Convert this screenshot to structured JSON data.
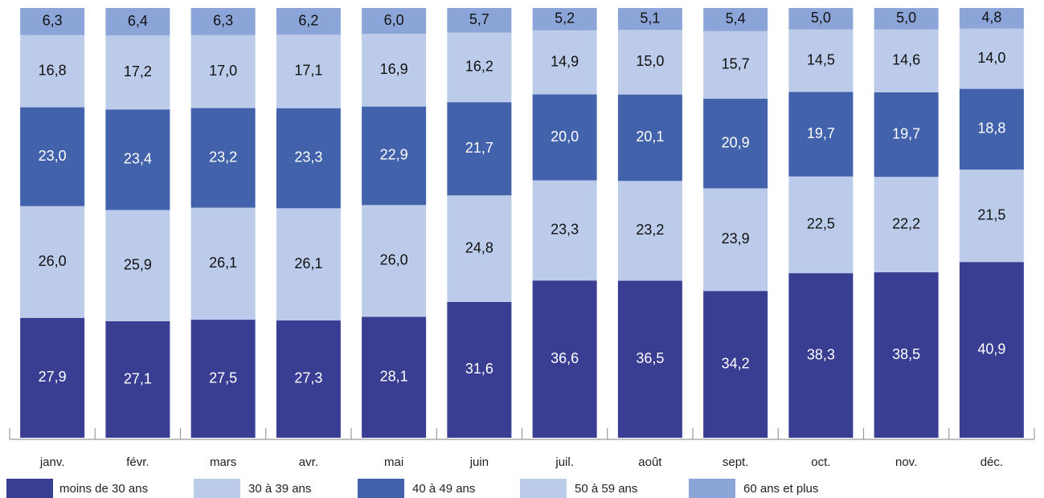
{
  "chart_data": {
    "type": "bar",
    "stacked": true,
    "percent": true,
    "categories": [
      "janv.",
      "févr.",
      "mars",
      "avr.",
      "mai",
      "juin",
      "juil.",
      "août",
      "sept.",
      "oct.",
      "nov.",
      "déc."
    ],
    "series": [
      {
        "name": "moins de 30 ans",
        "color": "#3a3e93",
        "label_color": "#ffffff",
        "values": [
          27.9,
          27.1,
          27.5,
          27.3,
          28.1,
          31.6,
          36.6,
          36.5,
          34.2,
          38.3,
          38.5,
          40.9
        ],
        "labels": [
          "27,9",
          "27,1",
          "27,5",
          "27,3",
          "28,1",
          "31,6",
          "36,6",
          "36,5",
          "34,2",
          "38,3",
          "38,5",
          "40,9"
        ]
      },
      {
        "name": "30 à 39 ans",
        "color": "#bccbea",
        "label_color": "#111111",
        "values": [
          26.0,
          25.9,
          26.1,
          26.1,
          26.0,
          24.8,
          23.3,
          23.2,
          23.9,
          22.5,
          22.2,
          21.5
        ],
        "labels": [
          "26,0",
          "25,9",
          "26,1",
          "26,1",
          "26,0",
          "24,8",
          "23,3",
          "23,2",
          "23,9",
          "22,5",
          "22,2",
          "21,5"
        ]
      },
      {
        "name": "40 à 49 ans",
        "color": "#4263ac",
        "label_color": "#ffffff",
        "values": [
          23.0,
          23.4,
          23.2,
          23.3,
          22.9,
          21.7,
          20.0,
          20.1,
          20.9,
          19.7,
          19.7,
          18.8
        ],
        "labels": [
          "23,0",
          "23,4",
          "23,2",
          "23,3",
          "22,9",
          "21,7",
          "20,0",
          "20,1",
          "20,9",
          "19,7",
          "19,7",
          "18,8"
        ]
      },
      {
        "name": "50 à 59 ans",
        "color": "#bccbea",
        "label_color": "#111111",
        "values": [
          16.8,
          17.2,
          17.0,
          17.1,
          16.9,
          16.2,
          14.9,
          15.0,
          15.7,
          14.5,
          14.6,
          14.0
        ],
        "labels": [
          "16,8",
          "17,2",
          "17,0",
          "17,1",
          "16,9",
          "16,2",
          "14,9",
          "15,0",
          "15,7",
          "14,5",
          "14,6",
          "14,0"
        ]
      },
      {
        "name": "60 ans et plus",
        "color": "#8ca5d8",
        "label_color": "#111111",
        "values": [
          6.3,
          6.4,
          6.3,
          6.2,
          6.0,
          5.7,
          5.2,
          5.1,
          5.4,
          5.0,
          5.0,
          4.8
        ],
        "labels": [
          "6,3",
          "6,4",
          "6,3",
          "6,2",
          "6,0",
          "5,7",
          "5,2",
          "5,1",
          "5,4",
          "5,0",
          "5,0",
          "4,8"
        ]
      }
    ],
    "legend_position": "bottom",
    "grid": false
  }
}
